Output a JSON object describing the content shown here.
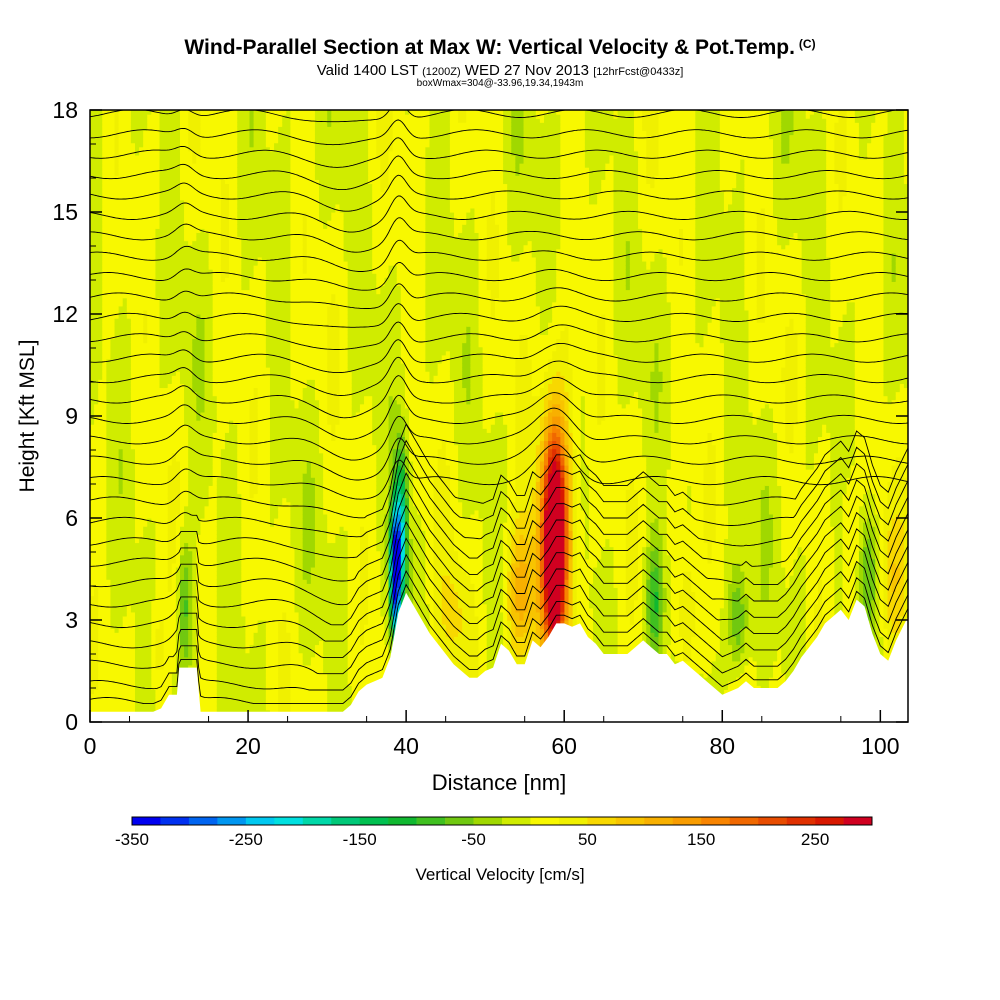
{
  "header": {
    "title": "Wind-Parallel Section at Max W: Vertical Velocity & Pot.Temp.",
    "copyright": "(C)",
    "valid_prefix": "Valid 1400 LST",
    "valid_zulu": "(1200Z)",
    "valid_date": "WED 27 Nov 2013",
    "forecast": "[12hrFcst@0433z]",
    "box_info": "boxWmax=304@-33.96,19.34,1943m"
  },
  "chart_data": {
    "type": "heatmap",
    "xlabel": "Distance [nm]",
    "ylabel": "Height [Kft MSL]",
    "xlim": [
      0,
      103.5
    ],
    "ylim": [
      0,
      18
    ],
    "x_ticks": [
      0,
      20,
      40,
      60,
      80,
      100
    ],
    "y_ticks": [
      0,
      3,
      6,
      9,
      12,
      15,
      18
    ],
    "colorbar": {
      "label": "Vertical Velocity [cm/s]",
      "min": -350,
      "max": 300,
      "step": 25,
      "tick_labels": [
        -350,
        -250,
        -150,
        -50,
        50,
        150,
        250
      ],
      "colors": [
        "#0000f0",
        "#0030f0",
        "#0064f0",
        "#0096f0",
        "#00c8f0",
        "#00e0e0",
        "#00d8a8",
        "#00c878",
        "#00c050",
        "#10b830",
        "#40c020",
        "#70c810",
        "#a0d800",
        "#d0ec00",
        "#f8f800",
        "#f0f000",
        "#f8d800",
        "#f8c400",
        "#f8b000",
        "#f89c00",
        "#f88400",
        "#f06800",
        "#e84c00",
        "#e03000",
        "#d81800",
        "#d00020"
      ]
    },
    "terrain": {
      "x": [
        0,
        7,
        8,
        9,
        10,
        11,
        11.3,
        13.5,
        14,
        32,
        33,
        34,
        35,
        36,
        37,
        38,
        39,
        40,
        41,
        42,
        43,
        44,
        45,
        46,
        47,
        48,
        49,
        50,
        51,
        52,
        53,
        54,
        55,
        56,
        57,
        58,
        59,
        60,
        61,
        62,
        63,
        64,
        65,
        66,
        67,
        68,
        69,
        70,
        71,
        72,
        73,
        74,
        75,
        76,
        77,
        78,
        79,
        80,
        81,
        82,
        83,
        84,
        85,
        86,
        87,
        88,
        89,
        90,
        91,
        92,
        93,
        94,
        95,
        96,
        97,
        98,
        99,
        100,
        101,
        102,
        103.5
      ],
      "height": [
        0.3,
        0.3,
        0.3,
        0.4,
        0.8,
        0.8,
        1.6,
        1.6,
        0.3,
        0.3,
        0.5,
        0.9,
        1.1,
        1.2,
        1.3,
        1.9,
        3.2,
        3.8,
        3.4,
        3.0,
        2.6,
        2.3,
        2.0,
        1.7,
        1.5,
        1.3,
        1.3,
        1.5,
        1.6,
        2.3,
        2.1,
        1.7,
        1.7,
        2.4,
        2.2,
        2.5,
        2.9,
        2.9,
        2.8,
        2.9,
        2.5,
        2.3,
        2.0,
        2.0,
        2.0,
        2.0,
        2.2,
        2.4,
        2.2,
        2.0,
        2.0,
        1.7,
        1.8,
        1.6,
        1.4,
        1.2,
        1.0,
        0.8,
        0.9,
        1.0,
        1.2,
        1.0,
        1.0,
        1.0,
        1.0,
        1.2,
        1.5,
        1.9,
        2.2,
        2.5,
        2.9,
        3.1,
        3.3,
        3.0,
        3.6,
        3.4,
        2.6,
        2.0,
        1.8,
        2.4,
        3.1
      ]
    },
    "updrafts": [
      {
        "x": 58.7,
        "z": 5.2,
        "w": 290,
        "sx": 0.9,
        "sz": 1.9
      },
      {
        "x": 59.0,
        "z": 5.5,
        "w": 200,
        "sx": 1.6,
        "sz": 2.8
      },
      {
        "x": 54.5,
        "z": 3.8,
        "w": 110,
        "sx": 1.4,
        "sz": 1.5
      },
      {
        "x": 46.0,
        "z": 3.0,
        "w": 50,
        "sx": 1.5,
        "sz": 1.3
      },
      {
        "x": 75.5,
        "z": 3.0,
        "w": 75,
        "sx": 0.8,
        "sz": 1.4
      },
      {
        "x": 101.5,
        "z": 4.0,
        "w": 50,
        "sx": 1.3,
        "sz": 1.5
      },
      {
        "x": 96.0,
        "z": 5.5,
        "w": 40,
        "sx": 0.8,
        "sz": 1.5
      },
      {
        "x": 8.5,
        "z": 2.0,
        "w": 45,
        "sx": 0.8,
        "sz": 1.2
      }
    ],
    "downdrafts": [
      {
        "x": 38.6,
        "z": 4.4,
        "w": -350,
        "sx": 0.45,
        "sz": 1.3
      },
      {
        "x": 39.4,
        "z": 5.5,
        "w": -200,
        "sx": 0.6,
        "sz": 1.8
      },
      {
        "x": 71.5,
        "z": 3.5,
        "w": -110,
        "sx": 0.8,
        "sz": 1.3
      },
      {
        "x": 82.0,
        "z": 3.0,
        "w": -90,
        "sx": 0.9,
        "sz": 1.2
      },
      {
        "x": 12.0,
        "z": 3.5,
        "w": -90,
        "sx": 0.7,
        "sz": 1.5
      },
      {
        "x": 98.5,
        "z": 4.5,
        "w": -75,
        "sx": 0.8,
        "sz": 1.3
      }
    ],
    "contours": {
      "base_heights": [
        0.6,
        1.1,
        1.7,
        2.3,
        2.9,
        3.5,
        4.1,
        4.7,
        5.3,
        5.9,
        6.5,
        7.1,
        7.7,
        8.3,
        8.9,
        9.5,
        10.1,
        10.7,
        11.3,
        11.9,
        12.5,
        13.1,
        13.7,
        14.3,
        14.9,
        15.5,
        16.1,
        16.7,
        17.3,
        17.9
      ]
    }
  }
}
